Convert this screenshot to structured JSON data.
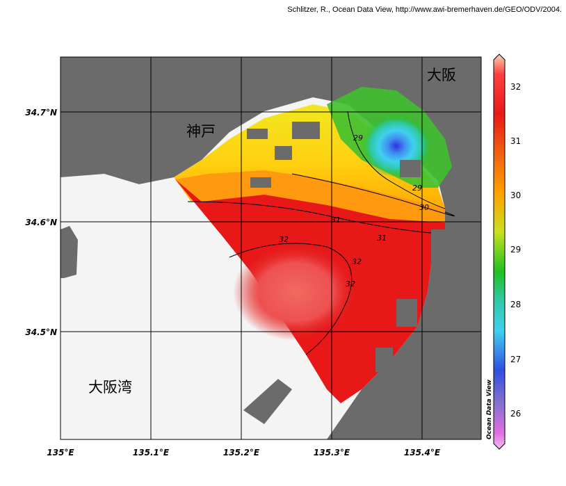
{
  "credit": "Schlitzer, R., Ocean Data View, http://www.awi-bremerhaven.de/GEO/ODV/2004.",
  "axes": {
    "x_ticks": [
      "135°E",
      "135.1°E",
      "135.2°E",
      "135.3°E",
      "135.4°E"
    ],
    "y_ticks": [
      "34.7°N",
      "34.6°N",
      "34.5°N"
    ]
  },
  "places": {
    "kobe": "神戸",
    "osaka": "大阪",
    "osaka_bay": "大阪湾"
  },
  "contours": {
    "labels": [
      "29",
      "29",
      "30",
      "31",
      "31",
      "32",
      "32",
      "32"
    ]
  },
  "colorbar": {
    "ticks": [
      "32",
      "31",
      "30",
      "29",
      "28",
      "27",
      "26"
    ],
    "brand": "Ocean Data View"
  },
  "colors": {
    "land": "#6b6b6b",
    "nodata": "#f4f4f4",
    "grid": "#000000"
  }
}
